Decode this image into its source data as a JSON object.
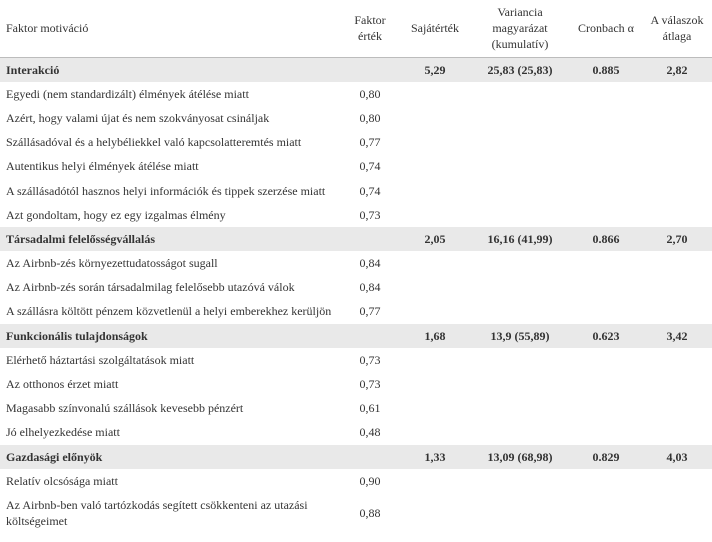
{
  "table": {
    "header": {
      "c0": "Faktor motiváció",
      "c1": "Faktor érték",
      "c2": "Sajátérték",
      "c3": "Variancia magyarázat (kumulatív)",
      "c4": "Cronbach α",
      "c5": "A válaszok átlaga"
    },
    "colors": {
      "section_bg": "#e9e9e9",
      "row_bg": "#ffffff",
      "border": "#bcbcbc",
      "text": "#333333"
    },
    "sections": [
      {
        "title": "Interakció",
        "sajatertek": "5,29",
        "variancia": "25,83 (25,83)",
        "cronbach": "0.885",
        "atlag": "2,82",
        "items": [
          {
            "label": "Egyedi (nem standardizált) élmények átélése miatt",
            "faktor": "0,80"
          },
          {
            "label": "Azért, hogy valami újat és nem szokványosat csináljak",
            "faktor": "0,80"
          },
          {
            "label": "Szállásadóval és a helybéliekkel való kapcsolatteremtés miatt",
            "faktor": "0,77"
          },
          {
            "label": "Autentikus helyi élmények átélése miatt",
            "faktor": "0,74"
          },
          {
            "label": "A szállásadótól hasznos helyi információk és tippek szerzése miatt",
            "faktor": "0,74"
          },
          {
            "label": "Azt gondoltam, hogy ez egy izgalmas élmény",
            "faktor": "0,73"
          }
        ]
      },
      {
        "title": "Társadalmi felelősségvállalás",
        "sajatertek": "2,05",
        "variancia": "16,16 (41,99)",
        "cronbach": "0.866",
        "atlag": "2,70",
        "items": [
          {
            "label": "Az Airbnb-zés környezettudatosságot sugall",
            "faktor": "0,84"
          },
          {
            "label": "Az Airbnb-zés során társadalmilag felelősebb utazóvá válok",
            "faktor": "0,84"
          },
          {
            "label": "A szállásra költött pénzem közvetlenül a helyi emberekhez kerüljön",
            "faktor": "0,77"
          }
        ]
      },
      {
        "title": "Funkcionális tulajdonságok",
        "sajatertek": "1,68",
        "variancia": "13,9 (55,89)",
        "cronbach": "0.623",
        "atlag": "3,42",
        "items": [
          {
            "label": "Elérhető háztartási szolgáltatások miatt",
            "faktor": "0,73"
          },
          {
            "label": "Az otthonos érzet miatt",
            "faktor": "0,73"
          },
          {
            "label": "Magasabb színvonalú szállások kevesebb pénzért",
            "faktor": "0,61"
          },
          {
            "label": "Jó elhelyezkedése miatt",
            "faktor": "0,48"
          }
        ]
      },
      {
        "title": "Gazdasági előnyök",
        "sajatertek": "1,33",
        "variancia": "13,09 (68,98)",
        "cronbach": "0.829",
        "atlag": "4,03",
        "items": [
          {
            "label": "Relatív olcsósága miatt",
            "faktor": "0,90"
          },
          {
            "label": "Az Airbnb-ben való tartózkodás segített csökkenteni az utazási költségeimet",
            "faktor": "0,88"
          }
        ]
      }
    ]
  }
}
